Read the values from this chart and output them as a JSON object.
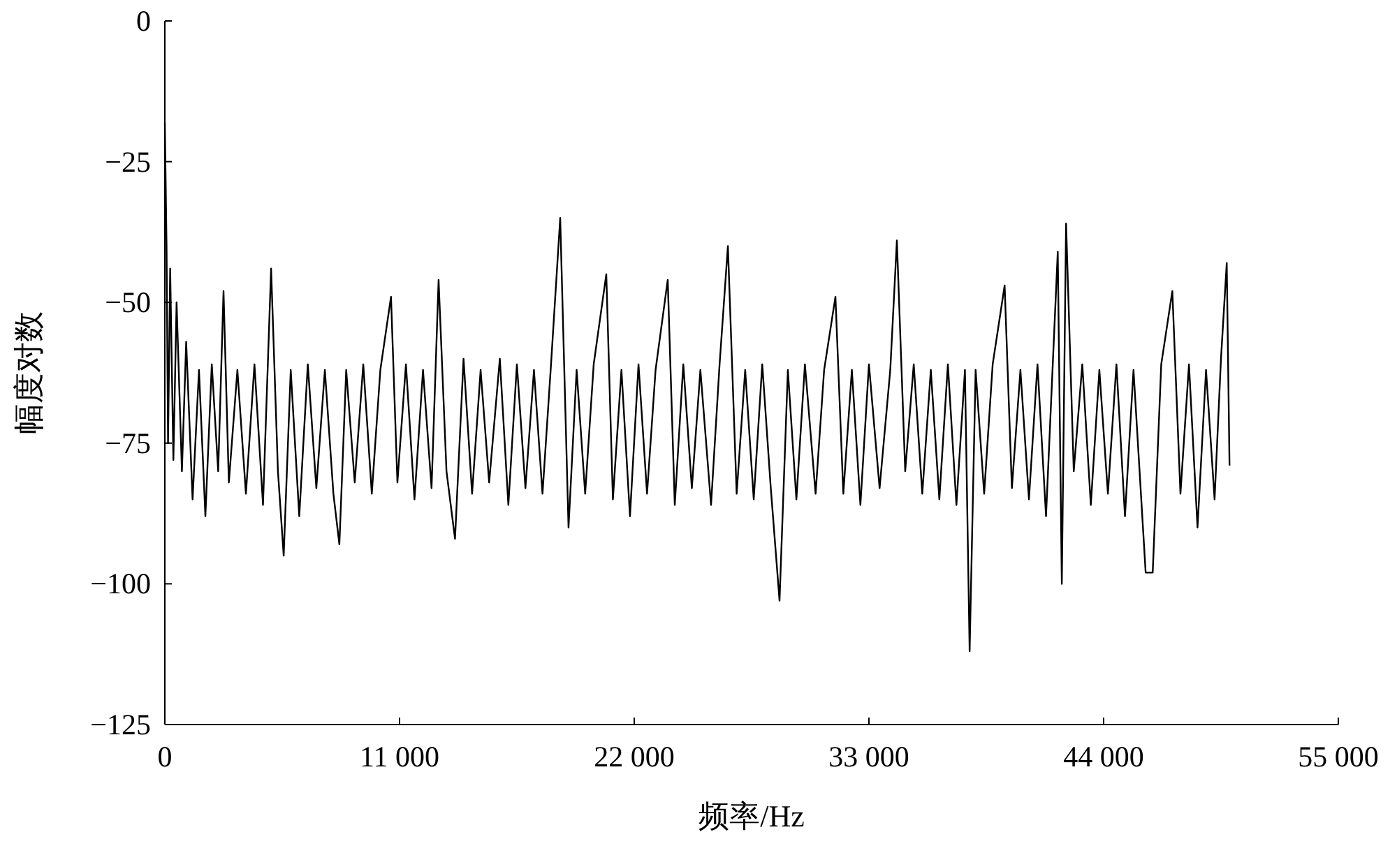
{
  "chart_data": {
    "type": "line",
    "xlabel": "频率/Hz",
    "ylabel": "幅度对数",
    "color": "#000000",
    "xlim": [
      0,
      55000
    ],
    "ylim": [
      -125,
      0
    ],
    "xticks": [
      0,
      {
        "value": 11000,
        "label": "11 000"
      },
      {
        "value": 22000,
        "label": "22 000"
      },
      {
        "value": 33000,
        "label": "33 000"
      },
      {
        "value": 44000,
        "label": "44 000"
      },
      {
        "value": 55000,
        "label": "55 000"
      }
    ],
    "yticks": [
      {
        "value": -125,
        "label": "−125"
      },
      {
        "value": -100,
        "label": "−100"
      },
      {
        "value": -75,
        "label": "−75"
      },
      {
        "value": -50,
        "label": "−50"
      },
      {
        "value": -25,
        "label": "−25"
      },
      0
    ],
    "x": [
      0,
      80,
      150,
      250,
      400,
      550,
      800,
      1000,
      1300,
      1600,
      1900,
      2200,
      2500,
      2750,
      3000,
      3400,
      3800,
      4200,
      4600,
      4980,
      5300,
      5570,
      5900,
      6300,
      6700,
      7100,
      7500,
      7900,
      8180,
      8500,
      8900,
      9300,
      9700,
      10100,
      10600,
      10900,
      11300,
      11700,
      12100,
      12500,
      12830,
      13200,
      13600,
      14000,
      14400,
      14800,
      15200,
      15700,
      16100,
      16500,
      16900,
      17300,
      17700,
      18100,
      18530,
      18920,
      19300,
      19700,
      20100,
      20690,
      21000,
      21400,
      21800,
      22200,
      22600,
      23000,
      23570,
      23900,
      24300,
      24700,
      25100,
      25600,
      26000,
      26390,
      26800,
      27200,
      27600,
      28000,
      28400,
      28810,
      29200,
      29600,
      30000,
      30500,
      30900,
      31430,
      31800,
      32200,
      32600,
      33000,
      33500,
      34000,
      34310,
      34700,
      35100,
      35500,
      35900,
      36300,
      36700,
      37100,
      37500,
      37720,
      38000,
      38400,
      38800,
      39360,
      39700,
      40100,
      40500,
      40900,
      41300,
      41850,
      42040,
      42240,
      42600,
      43000,
      43400,
      43800,
      44200,
      44600,
      45000,
      45400,
      45970,
      46300,
      46700,
      47220,
      47600,
      48000,
      48400,
      48800,
      49200,
      49500,
      49770,
      49900
    ],
    "values": [
      -18,
      -40,
      -75,
      -44,
      -78,
      -50,
      -80,
      -57,
      -85,
      -62,
      -88,
      -61,
      -80,
      -48,
      -82,
      -62,
      -84,
      -61,
      -86,
      -44,
      -80,
      -95,
      -62,
      -88,
      -61,
      -83,
      -62,
      -84,
      -93,
      -62,
      -82,
      -61,
      -84,
      -62,
      -49,
      -82,
      -61,
      -85,
      -62,
      -83,
      -46,
      -80,
      -92,
      -60,
      -84,
      -62,
      -82,
      -60,
      -86,
      -61,
      -83,
      -62,
      -84,
      -61,
      -35,
      -90,
      -62,
      -84,
      -61,
      -45,
      -85,
      -62,
      -88,
      -61,
      -84,
      -62,
      -46,
      -86,
      -61,
      -83,
      -62,
      -86,
      -61,
      -40,
      -84,
      -62,
      -85,
      -61,
      -83,
      -103,
      -62,
      -85,
      -61,
      -84,
      -62,
      -49,
      -84,
      -62,
      -86,
      -61,
      -83,
      -62,
      -39,
      -80,
      -61,
      -84,
      -62,
      -85,
      -61,
      -86,
      -62,
      -112,
      -62,
      -84,
      -61,
      -47,
      -83,
      -62,
      -85,
      -61,
      -88,
      -41,
      -100,
      -36,
      -80,
      -61,
      -86,
      -62,
      -84,
      -61,
      -88,
      -62,
      -98,
      -98,
      -61,
      -48,
      -84,
      -61,
      -90,
      -62,
      -85,
      -60,
      -43,
      -79
    ]
  }
}
